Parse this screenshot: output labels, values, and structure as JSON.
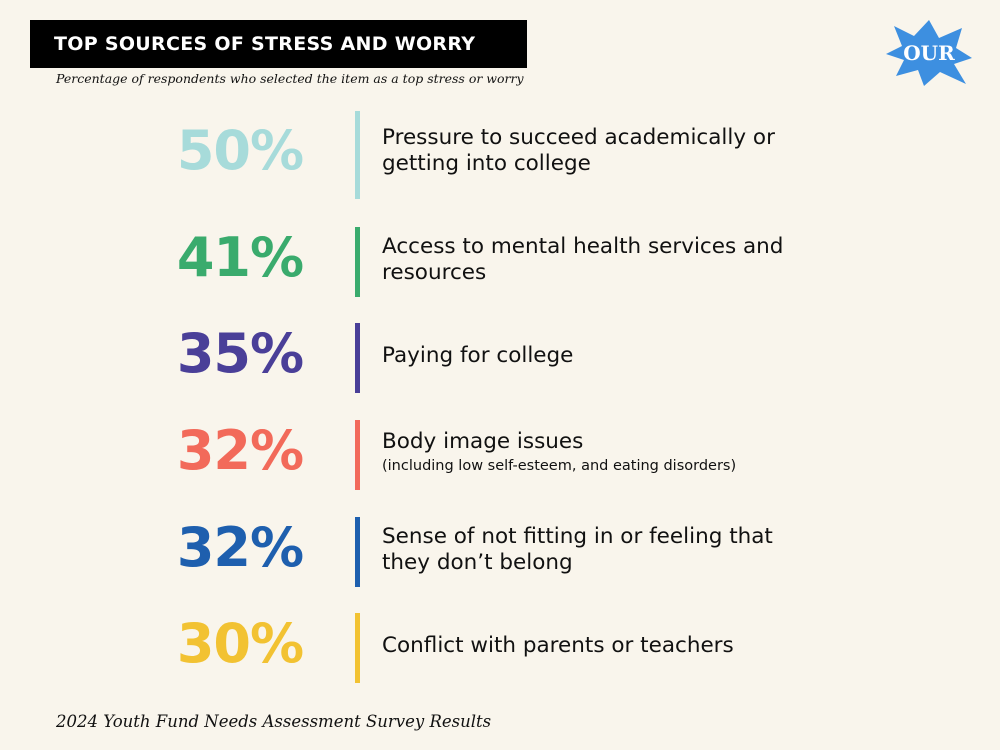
{
  "header": {
    "title": "TOP SOURCES OF STRESS AND WORRY",
    "subtitle": "Percentage of respondents who selected the item as a top stress or worry"
  },
  "logo": {
    "text": "OUR"
  },
  "items": [
    {
      "percent": "50%",
      "label": "Pressure to succeed academically or getting into college",
      "color": "#a7dbda"
    },
    {
      "percent": "41%",
      "label": "Access to mental health services and resources",
      "color": "#3aab6d"
    },
    {
      "percent": "35%",
      "label": "Paying for college",
      "color": "#4a3f98"
    },
    {
      "percent": "32%",
      "label": "Body image issues",
      "note": "(including low self-esteem, and eating disorders)",
      "color": "#f26a5a"
    },
    {
      "percent": "32%",
      "label": "Sense of not fitting in or feeling that they don’t belong",
      "color": "#1e5fae"
    },
    {
      "percent": "30%",
      "label": "Conflict with parents or teachers",
      "color": "#f2c232"
    }
  ],
  "footer": {
    "text": "2024 Youth Fund Needs Assessment Survey Results"
  }
}
